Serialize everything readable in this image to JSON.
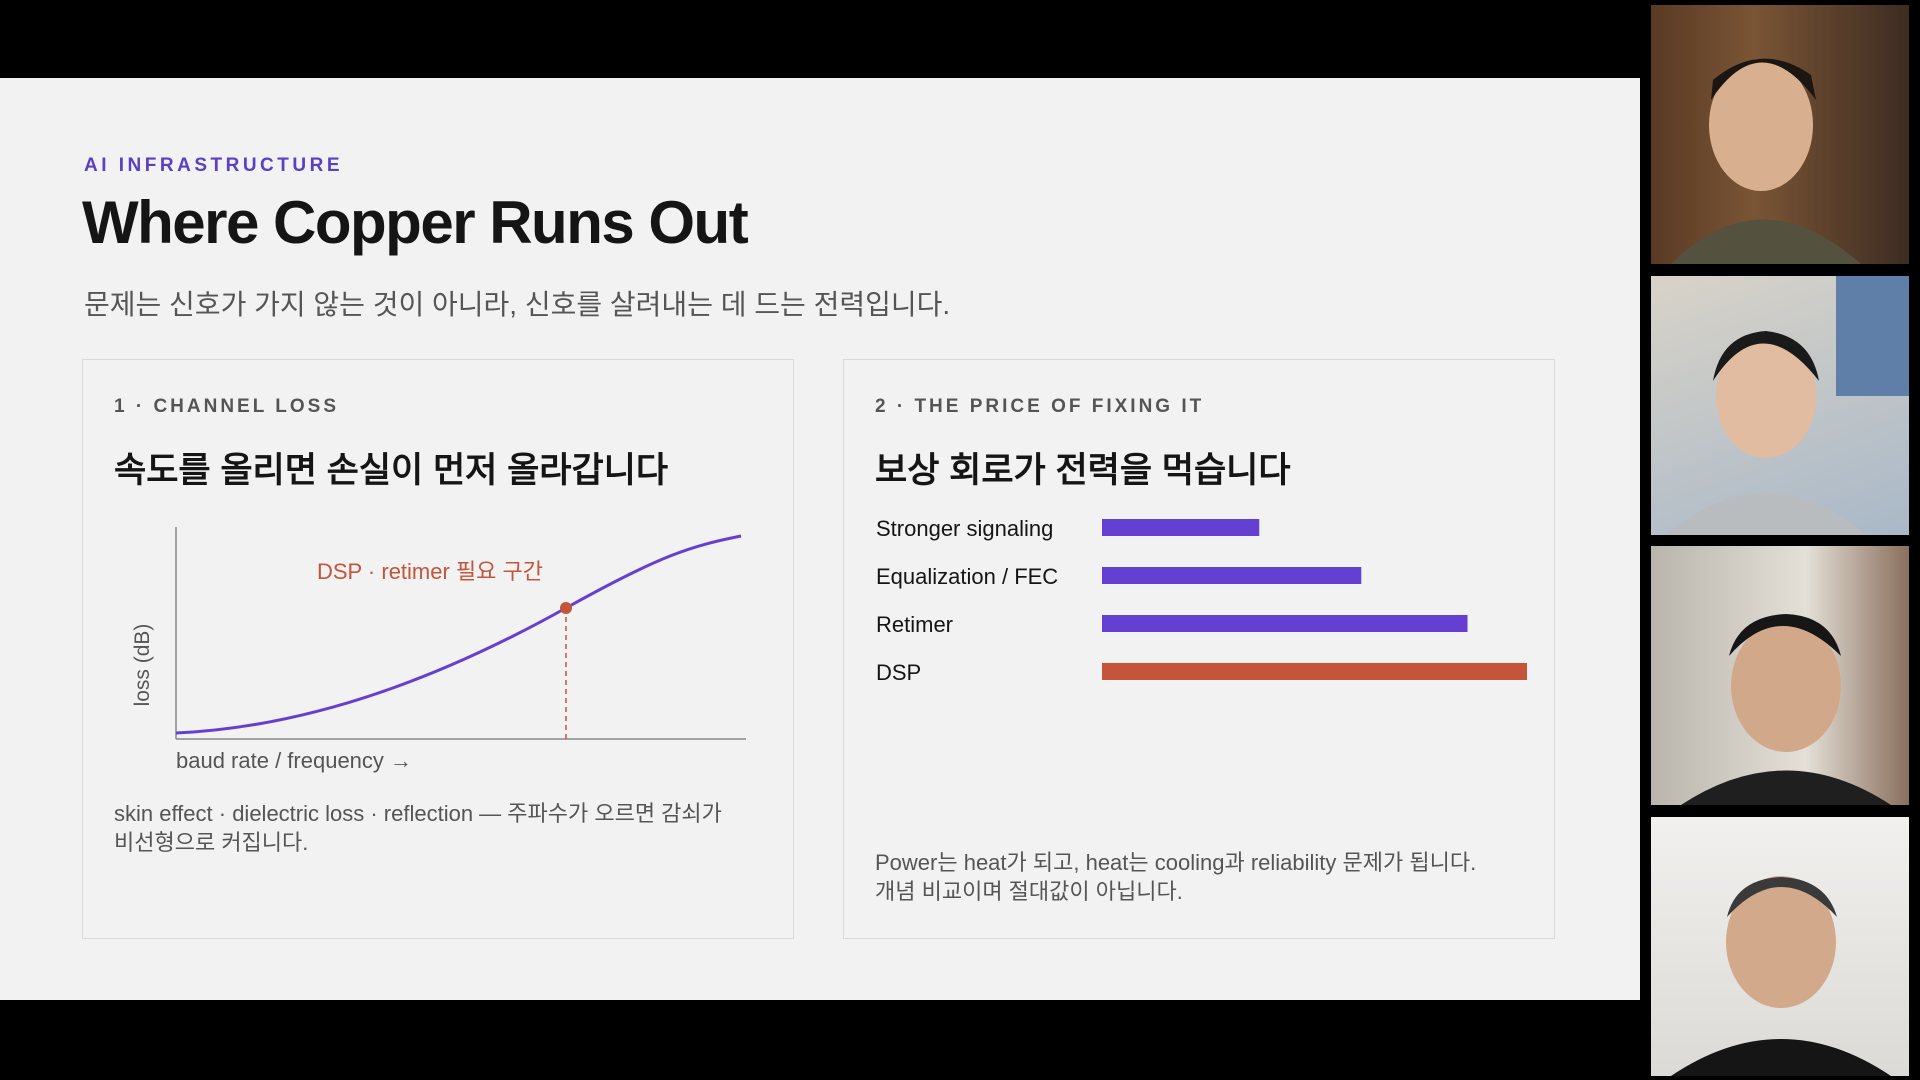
{
  "slide": {
    "eyebrow": "AI INFRASTRUCTURE",
    "title": "Where Copper Runs Out",
    "subtitle": "문제는 신호가 가지 않는 것이 아니라, 신호를 살려내는 데 드는 전력입니다.",
    "panels": [
      {
        "label": "1 · CHANNEL LOSS",
        "heading": "속도를 올리면 손실이 먼저 올라갑니다",
        "annotation": "DSP · retimer 필요 구간",
        "y_label": "loss (dB)",
        "x_label": "baud rate / frequency →",
        "note": [
          "skin effect · dielectric loss · reflection — 주파수가 오르면 감쇠가",
          "비선형으로 커집니다."
        ]
      },
      {
        "label": "2 · THE PRICE OF FIXING IT",
        "heading": "보상 회로가 전력을 먹습니다",
        "chart": {
          "type": "bar",
          "categories": [
            "Stronger signaling",
            "Equalization / FEC",
            "Retimer",
            "DSP"
          ],
          "values": [
            37,
            61,
            86,
            100
          ],
          "colors": [
            "#6440d2",
            "#6440d2",
            "#6440d2",
            "#c4553a"
          ],
          "xlim": [
            0,
            100
          ]
        },
        "note": [
          "Power는 heat가 되고, heat는 cooling과 reliability 문제가 됩니다.",
          "개념 비교이며 절대값이 아닙니다."
        ]
      }
    ]
  }
}
